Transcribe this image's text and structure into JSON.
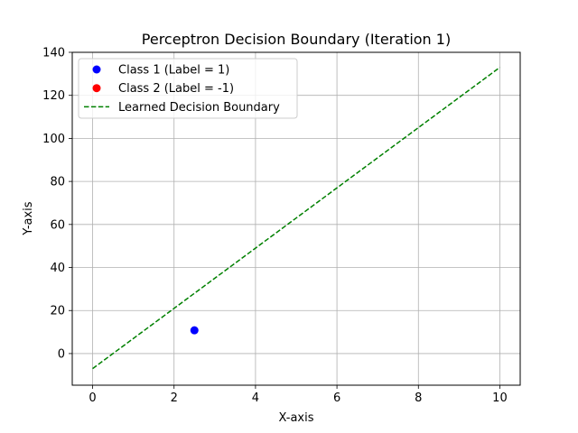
{
  "chart_data": {
    "type": "scatter",
    "title": "Perceptron Decision Boundary (Iteration 1)",
    "xlabel": "X-axis",
    "ylabel": "Y-axis",
    "xlim": [
      -0.5,
      10.5
    ],
    "ylim": [
      -14.7,
      140
    ],
    "xticks": [
      0,
      2,
      4,
      6,
      8,
      10
    ],
    "yticks": [
      0,
      20,
      40,
      60,
      80,
      100,
      120,
      140
    ],
    "grid": true,
    "legend_position": "upper-left",
    "series": [
      {
        "name": "Class 1 (Label = 1)",
        "kind": "points",
        "color": "#0000ff",
        "points": [
          [
            2.5,
            10.8
          ]
        ]
      },
      {
        "name": "Class 2 (Label = -1)",
        "kind": "points",
        "color": "#ff0000",
        "points": []
      },
      {
        "name": "Learned Decision Boundary",
        "kind": "dashed-line",
        "color": "#008000",
        "points": [
          [
            0,
            -7.0
          ],
          [
            10,
            133.0
          ]
        ]
      }
    ]
  }
}
